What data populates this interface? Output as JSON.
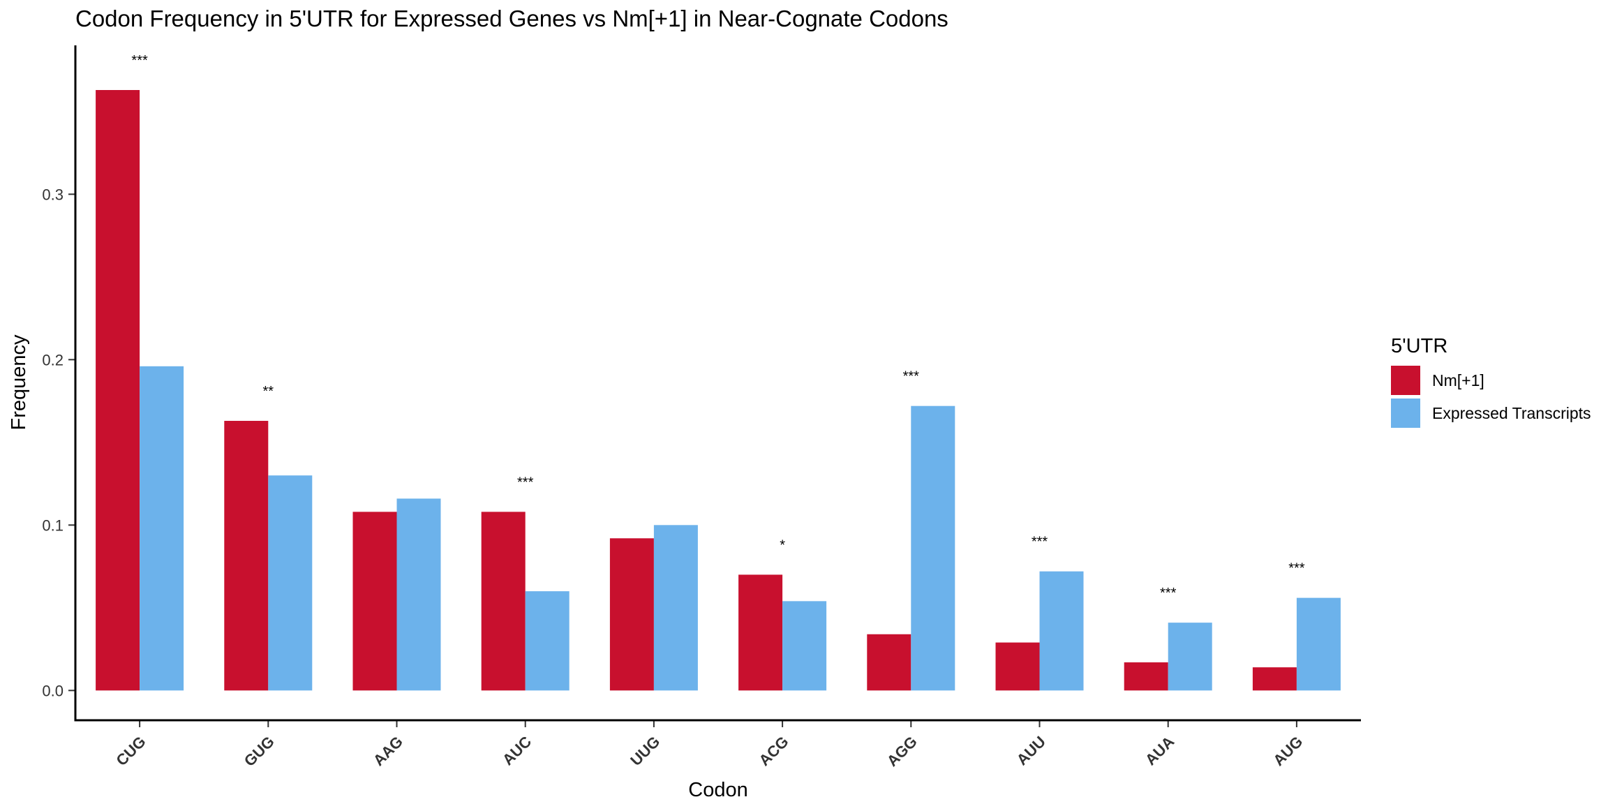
{
  "chart_data": {
    "type": "bar",
    "title": "Codon Frequency in 5'UTR for Expressed Genes vs Nm[+1] in Near-Cognate Codons",
    "xlabel": "Codon",
    "ylabel": "Frequency",
    "ylim": [
      -0.018,
      0.39
    ],
    "yticks": [
      0.0,
      0.1,
      0.2,
      0.3
    ],
    "ytick_labels": [
      "0.0",
      "0.1",
      "0.2",
      "0.3"
    ],
    "categories": [
      "CUG",
      "GUG",
      "AAG",
      "AUC",
      "UUG",
      "ACG",
      "AGG",
      "AUU",
      "AUA",
      "AUG"
    ],
    "series": [
      {
        "name": "Nm[+1]",
        "color": "#C8102E",
        "values": [
          0.363,
          0.163,
          0.108,
          0.108,
          0.092,
          0.07,
          0.034,
          0.029,
          0.017,
          0.014
        ]
      },
      {
        "name": "Expressed Transcripts",
        "color": "#6CB2EB",
        "values": [
          0.196,
          0.13,
          0.116,
          0.06,
          0.1,
          0.054,
          0.172,
          0.072,
          0.041,
          0.056
        ]
      }
    ],
    "significance": [
      "***",
      "**",
      "",
      "***",
      "",
      "*",
      "***",
      "***",
      "***",
      "***"
    ],
    "legend": {
      "title": "5'UTR",
      "placement": "right"
    },
    "grid": false
  }
}
